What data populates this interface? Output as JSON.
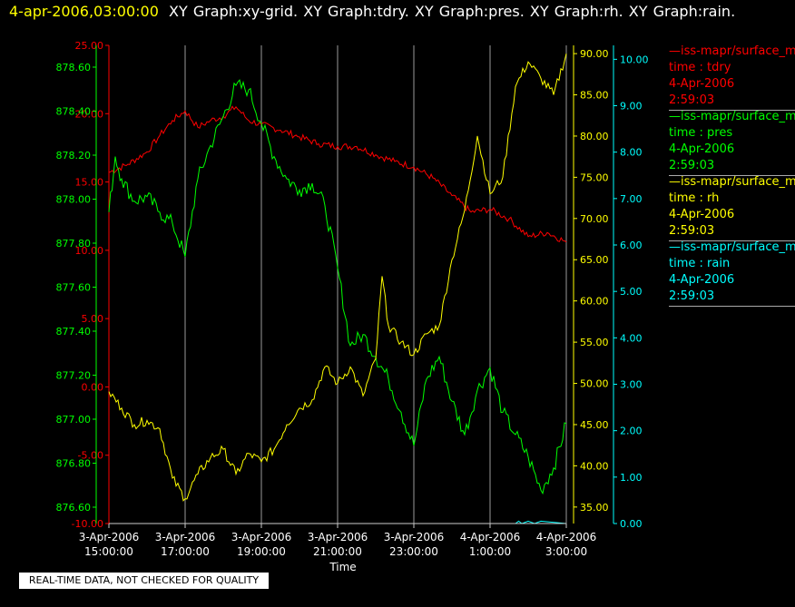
{
  "header": {
    "timestamp": "4-apr-2006,03:00:00",
    "titles": "XY Graph:xy-grid.  XY Graph:tdry.  XY Graph:pres.  XY Graph:rh.  XY Graph:rain."
  },
  "footer_note": "REAL-TIME DATA, NOT CHECKED FOR QUALITY",
  "legend": [
    {
      "source": "—iss-mapr/surface_m",
      "label": "time : tdry",
      "date": "4-Apr-2006",
      "time": "2:59:03",
      "color": "#ff0000"
    },
    {
      "source": "—iss-mapr/surface_m",
      "label": "time : pres",
      "date": "4-Apr-2006",
      "time": "2:59:03",
      "color": "#00ff00"
    },
    {
      "source": "—iss-mapr/surface_m",
      "label": "time : rh",
      "date": "4-Apr-2006",
      "time": "2:59:03",
      "color": "#ffff00"
    },
    {
      "source": "—iss-mapr/surface_m",
      "label": "time : rain",
      "date": "4-Apr-2006",
      "time": "2:59:03",
      "color": "#00ffff"
    }
  ],
  "chart_data": {
    "type": "line",
    "xlabel": "Time",
    "xlim": [
      "2006-04-03 15:00",
      "2006-04-04 03:00"
    ],
    "x_ticks": [
      {
        "date": "3-Apr-2006",
        "time": "15:00:00"
      },
      {
        "date": "3-Apr-2006",
        "time": "17:00:00"
      },
      {
        "date": "3-Apr-2006",
        "time": "19:00:00"
      },
      {
        "date": "3-Apr-2006",
        "time": "21:00:00"
      },
      {
        "date": "3-Apr-2006",
        "time": "23:00:00"
      },
      {
        "date": "4-Apr-2006",
        "time": "1:00:00"
      },
      {
        "date": "4-Apr-2006",
        "time": "3:00:00"
      }
    ],
    "grid": "vertical lines at time ticks",
    "legend_position": "right",
    "axes": {
      "tdry": {
        "color": "#ff0000",
        "side": "left",
        "ylim": [
          -10,
          25
        ],
        "ticks": [
          "25.00",
          "20.00",
          "15.00",
          "10.00",
          "5.00",
          "0.00",
          "-5.00",
          "-10.00"
        ]
      },
      "pres": {
        "color": "#00ff00",
        "side": "left",
        "ylim": [
          876.55,
          878.7
        ],
        "ticks": [
          "878.60",
          "878.40",
          "878.20",
          "878.00",
          "877.80",
          "877.60",
          "877.40",
          "877.20",
          "877.00",
          "876.80",
          "876.60"
        ]
      },
      "rh": {
        "color": "#ffff00",
        "side": "right",
        "ylim": [
          33,
          91
        ],
        "ticks": [
          "90.00",
          "85.00",
          "80.00",
          "75.00",
          "70.00",
          "65.00",
          "60.00",
          "55.00",
          "50.00",
          "45.00",
          "40.00",
          "35.00"
        ]
      },
      "rain": {
        "color": "#00ffff",
        "side": "right",
        "ylim": [
          0,
          10.3
        ],
        "ticks": [
          "10.00",
          "9.00",
          "8.00",
          "7.00",
          "6.00",
          "5.00",
          "4.00",
          "3.00",
          "2.00",
          "1.00",
          "0.00"
        ]
      }
    },
    "series": [
      {
        "name": "tdry",
        "axis": "tdry",
        "color": "#ff0000",
        "x": [
          "2006-04-03 15:00",
          "2006-04-03 15:30",
          "2006-04-03 16:00",
          "2006-04-03 16:20",
          "2006-04-03 16:40",
          "2006-04-03 17:00",
          "2006-04-03 17:20",
          "2006-04-03 17:40",
          "2006-04-03 18:00",
          "2006-04-03 18:20",
          "2006-04-03 18:40",
          "2006-04-03 19:00",
          "2006-04-03 19:30",
          "2006-04-03 20:00",
          "2006-04-03 20:30",
          "2006-04-03 21:00",
          "2006-04-03 21:30",
          "2006-04-03 22:00",
          "2006-04-03 22:30",
          "2006-04-03 23:00",
          "2006-04-03 23:30",
          "2006-04-04 00:00",
          "2006-04-04 00:30",
          "2006-04-04 01:00",
          "2006-04-04 01:30",
          "2006-04-04 02:00",
          "2006-04-04 02:30",
          "2006-04-04 03:00"
        ],
        "values": [
          15.7,
          16.3,
          17.2,
          18.4,
          19.5,
          20.2,
          19.0,
          19.5,
          19.8,
          20.5,
          19.5,
          19.2,
          18.8,
          18.3,
          17.8,
          17.6,
          17.6,
          17.0,
          16.5,
          16.1,
          15.3,
          14.0,
          12.8,
          13.0,
          12.3,
          11.0,
          11.3,
          10.6
        ]
      },
      {
        "name": "pres",
        "axis": "pres",
        "color": "#00ff00",
        "x": [
          "2006-04-03 15:00",
          "2006-04-03 15:10",
          "2006-04-03 15:20",
          "2006-04-03 15:40",
          "2006-04-03 16:00",
          "2006-04-03 16:20",
          "2006-04-03 16:40",
          "2006-04-03 17:00",
          "2006-04-03 17:20",
          "2006-04-03 17:40",
          "2006-04-03 18:00",
          "2006-04-03 18:20",
          "2006-04-03 18:40",
          "2006-04-03 19:00",
          "2006-04-03 19:20",
          "2006-04-03 19:40",
          "2006-04-03 20:00",
          "2006-04-03 20:20",
          "2006-04-03 20:40",
          "2006-04-03 21:00",
          "2006-04-03 21:20",
          "2006-04-03 21:40",
          "2006-04-03 22:00",
          "2006-04-03 22:20",
          "2006-04-03 22:40",
          "2006-04-03 23:00",
          "2006-04-03 23:20",
          "2006-04-03 23:40",
          "2006-04-04 00:00",
          "2006-04-04 00:20",
          "2006-04-04 00:40",
          "2006-04-04 01:00",
          "2006-04-04 01:20",
          "2006-04-04 01:40",
          "2006-04-04 02:00",
          "2006-04-04 02:20",
          "2006-04-04 02:40",
          "2006-04-04 03:00"
        ],
        "values": [
          877.95,
          878.2,
          878.1,
          878.0,
          878.02,
          877.95,
          877.9,
          877.75,
          878.1,
          878.25,
          878.38,
          878.52,
          878.5,
          878.35,
          878.2,
          878.1,
          878.05,
          878.08,
          877.98,
          877.7,
          877.35,
          877.4,
          877.3,
          877.2,
          877.05,
          876.9,
          877.2,
          877.3,
          877.1,
          876.95,
          877.15,
          877.25,
          877.05,
          876.95,
          876.85,
          876.7,
          876.8,
          877.0
        ]
      },
      {
        "name": "rh",
        "axis": "rh",
        "color": "#ffff00",
        "x": [
          "2006-04-03 15:00",
          "2006-04-03 15:20",
          "2006-04-03 15:40",
          "2006-04-03 16:00",
          "2006-04-03 16:20",
          "2006-04-03 16:40",
          "2006-04-03 17:00",
          "2006-04-03 17:20",
          "2006-04-03 17:40",
          "2006-04-03 18:00",
          "2006-04-03 18:20",
          "2006-04-03 18:40",
          "2006-04-03 19:00",
          "2006-04-03 19:20",
          "2006-04-03 19:40",
          "2006-04-03 20:00",
          "2006-04-03 20:20",
          "2006-04-03 20:40",
          "2006-04-03 21:00",
          "2006-04-03 21:20",
          "2006-04-03 21:40",
          "2006-04-03 22:00",
          "2006-04-03 22:10",
          "2006-04-03 22:20",
          "2006-04-03 22:40",
          "2006-04-03 23:00",
          "2006-04-03 23:20",
          "2006-04-03 23:40",
          "2006-04-04 00:00",
          "2006-04-04 00:20",
          "2006-04-04 00:40",
          "2006-04-04 01:00",
          "2006-04-04 01:20",
          "2006-04-04 01:40",
          "2006-04-04 02:00",
          "2006-04-04 02:20",
          "2006-04-04 02:40",
          "2006-04-04 03:00"
        ],
        "values": [
          49.0,
          47.0,
          45.0,
          45.5,
          44.5,
          38.5,
          36.0,
          39.0,
          41.0,
          42.0,
          39.0,
          41.5,
          40.5,
          42.0,
          45.0,
          47.0,
          48.0,
          52.0,
          50.0,
          52.0,
          48.5,
          53.0,
          63.0,
          57.0,
          55.0,
          53.5,
          56.0,
          57.0,
          65.0,
          71.0,
          80.0,
          73.0,
          75.0,
          86.0,
          89.0,
          87.0,
          85.0,
          90.0
        ]
      },
      {
        "name": "rain",
        "axis": "rain",
        "color": "#00ffff",
        "x": [
          "2006-04-03 15:00",
          "2006-04-04 01:40",
          "2006-04-04 01:45",
          "2006-04-04 01:50",
          "2006-04-04 02:00",
          "2006-04-04 02:10",
          "2006-04-04 02:20",
          "2006-04-04 03:00"
        ],
        "values": [
          0.0,
          0.0,
          0.05,
          0.0,
          0.05,
          0.0,
          0.05,
          0.0
        ]
      }
    ]
  }
}
